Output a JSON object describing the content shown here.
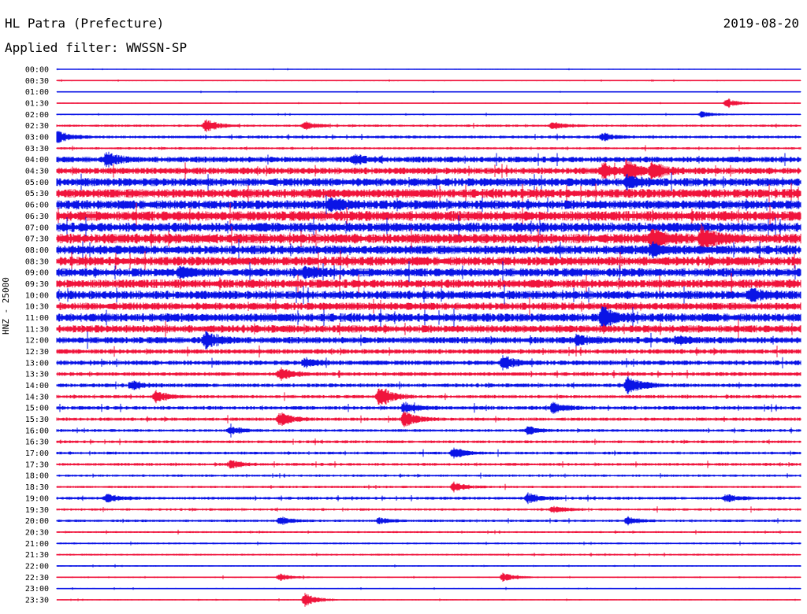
{
  "header": {
    "station": "HL Patra (Prefecture)",
    "date": "2019-08-20",
    "filter": "Applied filter: WWSSN-SP"
  },
  "chart_data": {
    "type": "line",
    "title": "HL Patra (Prefecture)",
    "subtitle": "Applied filter: WWSSN-SP",
    "ylabel": "HNZ - 25000",
    "xlabel": "",
    "grid": false,
    "colors": {
      "even_rows": "#0a14e6",
      "odd_rows": "#f0143c"
    },
    "row_labels": [
      "00:00",
      "00:30",
      "01:00",
      "01:30",
      "02:00",
      "02:30",
      "03:00",
      "03:30",
      "04:00",
      "04:30",
      "05:00",
      "05:30",
      "06:00",
      "06:30",
      "07:00",
      "07:30",
      "08:00",
      "08:30",
      "09:00",
      "09:30",
      "10:00",
      "10:30",
      "11:00",
      "11:30",
      "12:00",
      "12:30",
      "13:00",
      "13:30",
      "14:00",
      "14:30",
      "15:00",
      "15:30",
      "16:00",
      "16:30",
      "17:00",
      "17:30",
      "18:00",
      "18:30",
      "19:00",
      "19:30",
      "20:00",
      "20:30",
      "21:00",
      "21:30",
      "22:00",
      "22:30",
      "23:00",
      "23:30"
    ],
    "noise_level": [
      0.4,
      0.5,
      0.4,
      0.4,
      0.6,
      1.0,
      1.2,
      1.0,
      2.5,
      2.8,
      3.5,
      3.8,
      3.8,
      4.2,
      4.0,
      4.2,
      3.8,
      3.8,
      3.6,
      3.6,
      3.6,
      3.2,
      3.6,
      3.2,
      2.8,
      2.0,
      2.0,
      1.6,
      1.6,
      1.4,
      1.6,
      1.4,
      1.2,
      1.2,
      1.2,
      1.2,
      1.0,
      1.0,
      1.2,
      1.0,
      1.0,
      0.8,
      0.8,
      0.8,
      0.6,
      0.6,
      0.5,
      0.5
    ],
    "events": [
      {
        "row": 5,
        "minute": 6,
        "amplitude": 9
      },
      {
        "row": 5,
        "minute": 10,
        "amplitude": 5
      },
      {
        "row": 5,
        "minute": 20,
        "amplitude": 5
      },
      {
        "row": 6,
        "minute": 0,
        "amplitude": 9
      },
      {
        "row": 6,
        "minute": 22,
        "amplitude": 5
      },
      {
        "row": 3,
        "minute": 27,
        "amplitude": 6
      },
      {
        "row": 4,
        "minute": 26,
        "amplitude": 4
      },
      {
        "row": 8,
        "minute": 2,
        "amplitude": 8
      },
      {
        "row": 8,
        "minute": 12,
        "amplitude": 6
      },
      {
        "row": 9,
        "minute": 22,
        "amplitude": 9
      },
      {
        "row": 9,
        "minute": 23,
        "amplitude": 12
      },
      {
        "row": 9,
        "minute": 24,
        "amplitude": 9
      },
      {
        "row": 10,
        "minute": 23,
        "amplitude": 9
      },
      {
        "row": 12,
        "minute": 11,
        "amplitude": 8
      },
      {
        "row": 15,
        "minute": 24,
        "amplitude": 12
      },
      {
        "row": 15,
        "minute": 26,
        "amplitude": 16
      },
      {
        "row": 16,
        "minute": 24,
        "amplitude": 8
      },
      {
        "row": 18,
        "minute": 5,
        "amplitude": 6
      },
      {
        "row": 18,
        "minute": 10,
        "amplitude": 6
      },
      {
        "row": 20,
        "minute": 28,
        "amplitude": 7
      },
      {
        "row": 22,
        "minute": 22,
        "amplitude": 12
      },
      {
        "row": 24,
        "minute": 6,
        "amplitude": 10
      },
      {
        "row": 24,
        "minute": 21,
        "amplitude": 6
      },
      {
        "row": 24,
        "minute": 25,
        "amplitude": 6
      },
      {
        "row": 26,
        "minute": 18,
        "amplitude": 9
      },
      {
        "row": 26,
        "minute": 10,
        "amplitude": 5
      },
      {
        "row": 27,
        "minute": 9,
        "amplitude": 8
      },
      {
        "row": 28,
        "minute": 23,
        "amplitude": 14
      },
      {
        "row": 28,
        "minute": 3,
        "amplitude": 5
      },
      {
        "row": 29,
        "minute": 13,
        "amplitude": 15
      },
      {
        "row": 29,
        "minute": 4,
        "amplitude": 8
      },
      {
        "row": 30,
        "minute": 14,
        "amplitude": 7
      },
      {
        "row": 30,
        "minute": 20,
        "amplitude": 6
      },
      {
        "row": 31,
        "minute": 9,
        "amplitude": 9
      },
      {
        "row": 31,
        "minute": 14,
        "amplitude": 11
      },
      {
        "row": 32,
        "minute": 7,
        "amplitude": 5
      },
      {
        "row": 32,
        "minute": 19,
        "amplitude": 5
      },
      {
        "row": 34,
        "minute": 16,
        "amplitude": 7
      },
      {
        "row": 35,
        "minute": 7,
        "amplitude": 5
      },
      {
        "row": 37,
        "minute": 16,
        "amplitude": 6
      },
      {
        "row": 38,
        "minute": 2,
        "amplitude": 6
      },
      {
        "row": 38,
        "minute": 19,
        "amplitude": 7
      },
      {
        "row": 38,
        "minute": 27,
        "amplitude": 5
      },
      {
        "row": 39,
        "minute": 20,
        "amplitude": 5
      },
      {
        "row": 40,
        "minute": 9,
        "amplitude": 5
      },
      {
        "row": 40,
        "minute": 23,
        "amplitude": 5
      },
      {
        "row": 40,
        "minute": 13,
        "amplitude": 4
      },
      {
        "row": 45,
        "minute": 9,
        "amplitude": 5
      },
      {
        "row": 45,
        "minute": 18,
        "amplitude": 6
      },
      {
        "row": 47,
        "minute": 10,
        "amplitude": 9
      }
    ]
  }
}
